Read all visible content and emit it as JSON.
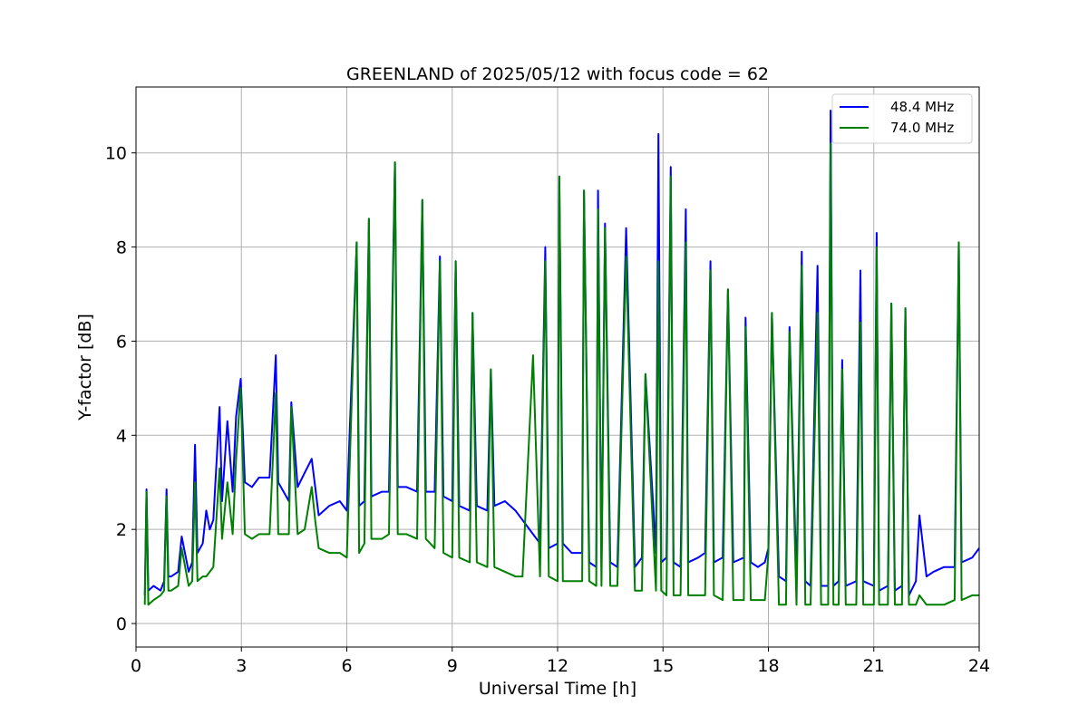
{
  "chart_data": {
    "type": "line",
    "title": "GREENLAND of 2025/05/12 with focus code = 62",
    "xlabel": "Universal Time [h]",
    "ylabel": "Y-factor [dB]",
    "xlim": [
      0,
      24
    ],
    "ylim": [
      -0.5,
      11.4
    ],
    "xticks": [
      0,
      3,
      6,
      9,
      12,
      15,
      18,
      21,
      24
    ],
    "xtick_labels": [
      "0",
      "3",
      "6",
      "9",
      "12",
      "15",
      "18",
      "21",
      "24"
    ],
    "yticks": [
      0,
      2,
      4,
      6,
      8,
      10
    ],
    "ytick_labels": [
      "0",
      "2",
      "4",
      "6",
      "8",
      "10"
    ],
    "grid": true,
    "legend_position": "top-right",
    "series": [
      {
        "name": "48.4 MHz",
        "color": "#0000ff",
        "x": [
          0.25,
          0.3,
          0.35,
          0.5,
          0.7,
          0.8,
          0.87,
          0.92,
          1.0,
          1.2,
          1.3,
          1.5,
          1.6,
          1.68,
          1.75,
          1.9,
          2.0,
          2.1,
          2.2,
          2.38,
          2.45,
          2.6,
          2.75,
          2.85,
          2.98,
          3.1,
          3.3,
          3.5,
          3.8,
          3.98,
          4.05,
          4.2,
          4.35,
          4.42,
          4.6,
          4.8,
          5.0,
          5.2,
          5.5,
          5.8,
          6.0,
          6.28,
          6.35,
          6.5,
          6.63,
          6.7,
          7.0,
          7.2,
          7.37,
          7.45,
          7.7,
          8.0,
          8.15,
          8.25,
          8.5,
          8.65,
          8.75,
          9.0,
          9.1,
          9.2,
          9.5,
          9.58,
          9.7,
          10.0,
          10.1,
          10.2,
          10.5,
          10.8,
          11.0,
          11.3,
          11.5,
          11.65,
          11.75,
          12.0,
          12.05,
          12.15,
          12.4,
          12.7,
          12.75,
          12.9,
          13.1,
          13.15,
          13.25,
          13.35,
          13.5,
          13.7,
          13.95,
          14.2,
          14.4,
          14.5,
          14.8,
          14.87,
          14.95,
          15.1,
          15.22,
          15.3,
          15.5,
          15.65,
          15.72,
          16.0,
          16.2,
          16.35,
          16.45,
          16.7,
          16.85,
          17.0,
          17.3,
          17.35,
          17.5,
          17.7,
          17.9,
          18.0,
          18.1,
          18.3,
          18.5,
          18.6,
          18.8,
          18.95,
          19.05,
          19.2,
          19.4,
          19.5,
          19.7,
          19.77,
          19.85,
          20.0,
          20.1,
          20.2,
          20.5,
          20.62,
          20.7,
          21.0,
          21.08,
          21.15,
          21.4,
          21.5,
          21.6,
          21.8,
          21.9,
          22.0,
          22.2,
          22.3,
          22.5,
          22.7,
          23.0,
          23.3,
          23.42,
          23.5,
          23.8,
          24.0
        ],
        "y": [
          0.6,
          2.85,
          0.7,
          0.8,
          0.7,
          0.9,
          2.85,
          1.0,
          1.0,
          1.1,
          1.85,
          1.1,
          1.3,
          3.8,
          1.5,
          1.7,
          2.4,
          2.0,
          2.2,
          4.6,
          2.6,
          4.3,
          2.8,
          4.4,
          5.2,
          3.0,
          2.9,
          3.1,
          3.1,
          5.7,
          3.0,
          2.8,
          2.6,
          4.7,
          2.9,
          3.2,
          3.5,
          2.3,
          2.5,
          2.6,
          2.4,
          8.1,
          2.5,
          2.6,
          8.6,
          2.7,
          2.8,
          2.8,
          9.8,
          2.9,
          2.9,
          2.8,
          9.0,
          2.8,
          2.8,
          7.8,
          2.7,
          2.6,
          7.7,
          2.5,
          2.4,
          6.6,
          2.5,
          2.4,
          5.4,
          2.5,
          2.6,
          2.4,
          2.2,
          1.9,
          1.7,
          8.0,
          1.6,
          1.7,
          9.5,
          1.7,
          1.5,
          1.5,
          9.2,
          1.3,
          1.2,
          9.2,
          1.2,
          8.5,
          1.3,
          1.2,
          8.4,
          1.2,
          1.4,
          5.3,
          1.5,
          10.4,
          1.3,
          1.4,
          9.7,
          1.3,
          1.2,
          8.8,
          1.3,
          1.4,
          1.5,
          7.7,
          1.3,
          1.4,
          7.1,
          1.3,
          1.4,
          6.5,
          1.3,
          1.2,
          1.3,
          1.6,
          6.6,
          1.0,
          0.9,
          6.3,
          0.9,
          7.9,
          0.9,
          0.8,
          7.6,
          0.8,
          0.8,
          10.9,
          0.8,
          0.9,
          5.6,
          0.8,
          0.9,
          7.5,
          0.9,
          0.8,
          8.3,
          0.7,
          0.8,
          6.8,
          0.7,
          0.8,
          6.7,
          0.6,
          0.9,
          2.3,
          1.0,
          1.1,
          1.2,
          1.2,
          8.1,
          1.3,
          1.4,
          1.6
        ]
      },
      {
        "name": "74.0 MHz",
        "color": "#008000",
        "x": [
          0.25,
          0.3,
          0.35,
          0.5,
          0.7,
          0.8,
          0.87,
          0.92,
          1.0,
          1.2,
          1.3,
          1.5,
          1.6,
          1.68,
          1.75,
          1.9,
          2.0,
          2.1,
          2.2,
          2.38,
          2.45,
          2.6,
          2.75,
          2.85,
          2.98,
          3.1,
          3.3,
          3.5,
          3.8,
          3.98,
          4.05,
          4.2,
          4.35,
          4.42,
          4.6,
          4.8,
          5.0,
          5.1,
          5.2,
          5.5,
          5.8,
          6.0,
          6.28,
          6.35,
          6.5,
          6.63,
          6.7,
          7.0,
          7.2,
          7.37,
          7.45,
          7.7,
          8.0,
          8.15,
          8.25,
          8.5,
          8.65,
          8.75,
          9.0,
          9.1,
          9.2,
          9.5,
          9.58,
          9.7,
          10.0,
          10.1,
          10.2,
          10.5,
          10.8,
          11.0,
          11.3,
          11.5,
          11.65,
          11.75,
          12.0,
          12.05,
          12.15,
          12.4,
          12.7,
          12.75,
          12.9,
          13.1,
          13.15,
          13.25,
          13.35,
          13.5,
          13.7,
          13.95,
          14.2,
          14.4,
          14.5,
          14.8,
          14.87,
          14.95,
          15.1,
          15.22,
          15.3,
          15.5,
          15.65,
          15.72,
          16.0,
          16.2,
          16.35,
          16.45,
          16.7,
          16.85,
          17.0,
          17.3,
          17.35,
          17.5,
          17.7,
          17.9,
          18.0,
          18.1,
          18.3,
          18.5,
          18.6,
          18.8,
          18.95,
          19.05,
          19.2,
          19.4,
          19.5,
          19.7,
          19.77,
          19.85,
          20.0,
          20.1,
          20.2,
          20.5,
          20.62,
          20.7,
          21.0,
          21.08,
          21.15,
          21.4,
          21.5,
          21.6,
          21.8,
          21.9,
          22.0,
          22.2,
          22.3,
          22.5,
          22.7,
          23.0,
          23.3,
          23.42,
          23.5,
          23.8,
          24.0
        ],
        "y": [
          0.4,
          2.8,
          0.4,
          0.5,
          0.6,
          0.7,
          2.7,
          0.7,
          0.7,
          0.8,
          1.6,
          0.8,
          0.9,
          3.0,
          0.9,
          1.0,
          1.0,
          1.1,
          1.2,
          3.3,
          1.8,
          3.0,
          1.9,
          3.5,
          5.0,
          1.9,
          1.8,
          1.9,
          1.9,
          4.9,
          1.9,
          1.9,
          1.9,
          4.6,
          1.9,
          2.0,
          2.9,
          2.2,
          1.6,
          1.5,
          1.5,
          1.4,
          8.1,
          1.5,
          1.7,
          8.6,
          1.8,
          1.8,
          1.9,
          9.8,
          1.9,
          1.9,
          1.8,
          9.0,
          1.8,
          1.6,
          7.7,
          1.5,
          1.4,
          7.7,
          1.4,
          1.3,
          6.6,
          1.3,
          1.2,
          5.4,
          1.2,
          1.1,
          1.0,
          1.0,
          5.7,
          1.0,
          7.7,
          1.0,
          0.9,
          9.5,
          0.9,
          0.9,
          0.9,
          9.2,
          0.9,
          0.8,
          8.8,
          0.8,
          8.4,
          0.8,
          0.8,
          7.8,
          0.7,
          0.7,
          5.3,
          0.7,
          7.7,
          0.7,
          0.6,
          9.5,
          0.6,
          0.6,
          8.1,
          0.6,
          0.6,
          0.6,
          7.5,
          0.6,
          0.5,
          7.1,
          0.5,
          0.5,
          6.3,
          0.5,
          0.5,
          0.5,
          1.5,
          6.6,
          0.4,
          0.4,
          6.2,
          0.4,
          7.6,
          0.4,
          0.4,
          6.6,
          0.4,
          0.4,
          10.2,
          0.4,
          0.4,
          5.4,
          0.4,
          0.4,
          6.4,
          0.4,
          0.4,
          8.0,
          0.4,
          0.4,
          6.8,
          0.4,
          0.4,
          6.7,
          0.4,
          0.4,
          0.6,
          0.4,
          0.4,
          0.4,
          0.5,
          8.1,
          0.5,
          0.6,
          0.6
        ]
      }
    ]
  }
}
